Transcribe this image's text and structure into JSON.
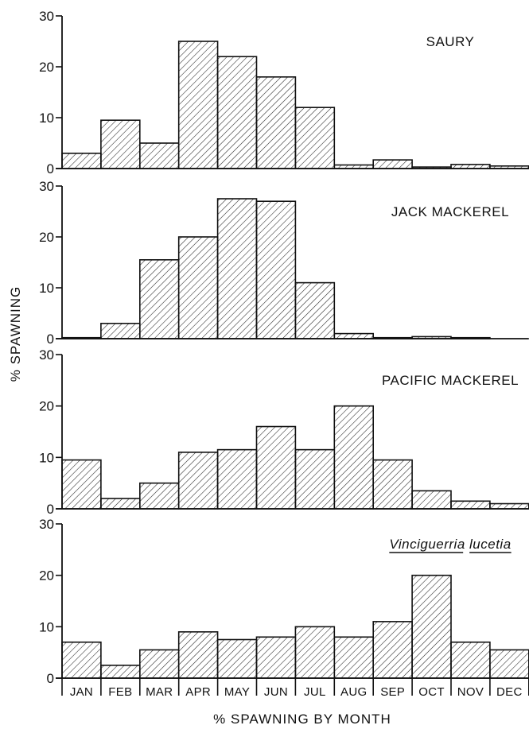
{
  "ylabel": "% SPAWNING",
  "xlabel": "% SPAWNING BY MONTH",
  "chart_data": [
    {
      "type": "bar",
      "title": "SAURY",
      "title_style": "normal",
      "categories": [
        "JAN",
        "FEB",
        "MAR",
        "APR",
        "MAY",
        "JUN",
        "JUL",
        "AUG",
        "SEP",
        "OCT",
        "NOV",
        "DEC"
      ],
      "values": [
        3,
        9.5,
        5,
        25,
        22,
        18,
        12,
        0.7,
        1.7,
        0.3,
        0.8,
        0.5
      ],
      "ylim": [
        0,
        30
      ],
      "yticks": [
        "0",
        "10",
        "20",
        "30"
      ]
    },
    {
      "type": "bar",
      "title": "JACK MACKEREL",
      "title_style": "normal",
      "categories": [
        "JAN",
        "FEB",
        "MAR",
        "APR",
        "MAY",
        "JUN",
        "JUL",
        "AUG",
        "SEP",
        "OCT",
        "NOV",
        "DEC"
      ],
      "values": [
        0.2,
        3,
        15.5,
        20,
        27.5,
        27,
        11,
        1,
        0.2,
        0.4,
        0.2,
        0
      ],
      "ylim": [
        0,
        30
      ],
      "yticks": [
        "0",
        "10",
        "20",
        "30"
      ]
    },
    {
      "type": "bar",
      "title": "PACIFIC MACKEREL",
      "title_style": "normal",
      "categories": [
        "JAN",
        "FEB",
        "MAR",
        "APR",
        "MAY",
        "JUN",
        "JUL",
        "AUG",
        "SEP",
        "OCT",
        "NOV",
        "DEC"
      ],
      "values": [
        9.5,
        2,
        5,
        11,
        11.5,
        16,
        11.5,
        20,
        9.5,
        3.5,
        1.5,
        1
      ],
      "ylim": [
        0,
        30
      ],
      "yticks": [
        "0",
        "10",
        "20",
        "30"
      ]
    },
    {
      "type": "bar",
      "title": "Vinciguerria lucetia",
      "title_style": "italic-underline",
      "categories": [
        "JAN",
        "FEB",
        "MAR",
        "APR",
        "MAY",
        "JUN",
        "JUL",
        "AUG",
        "SEP",
        "OCT",
        "NOV",
        "DEC"
      ],
      "values": [
        7,
        2.5,
        5.5,
        9,
        7.5,
        8,
        10,
        8,
        11,
        20,
        7,
        5.5
      ],
      "ylim": [
        0,
        30
      ],
      "yticks": [
        "0",
        "10",
        "20",
        "30"
      ]
    }
  ]
}
